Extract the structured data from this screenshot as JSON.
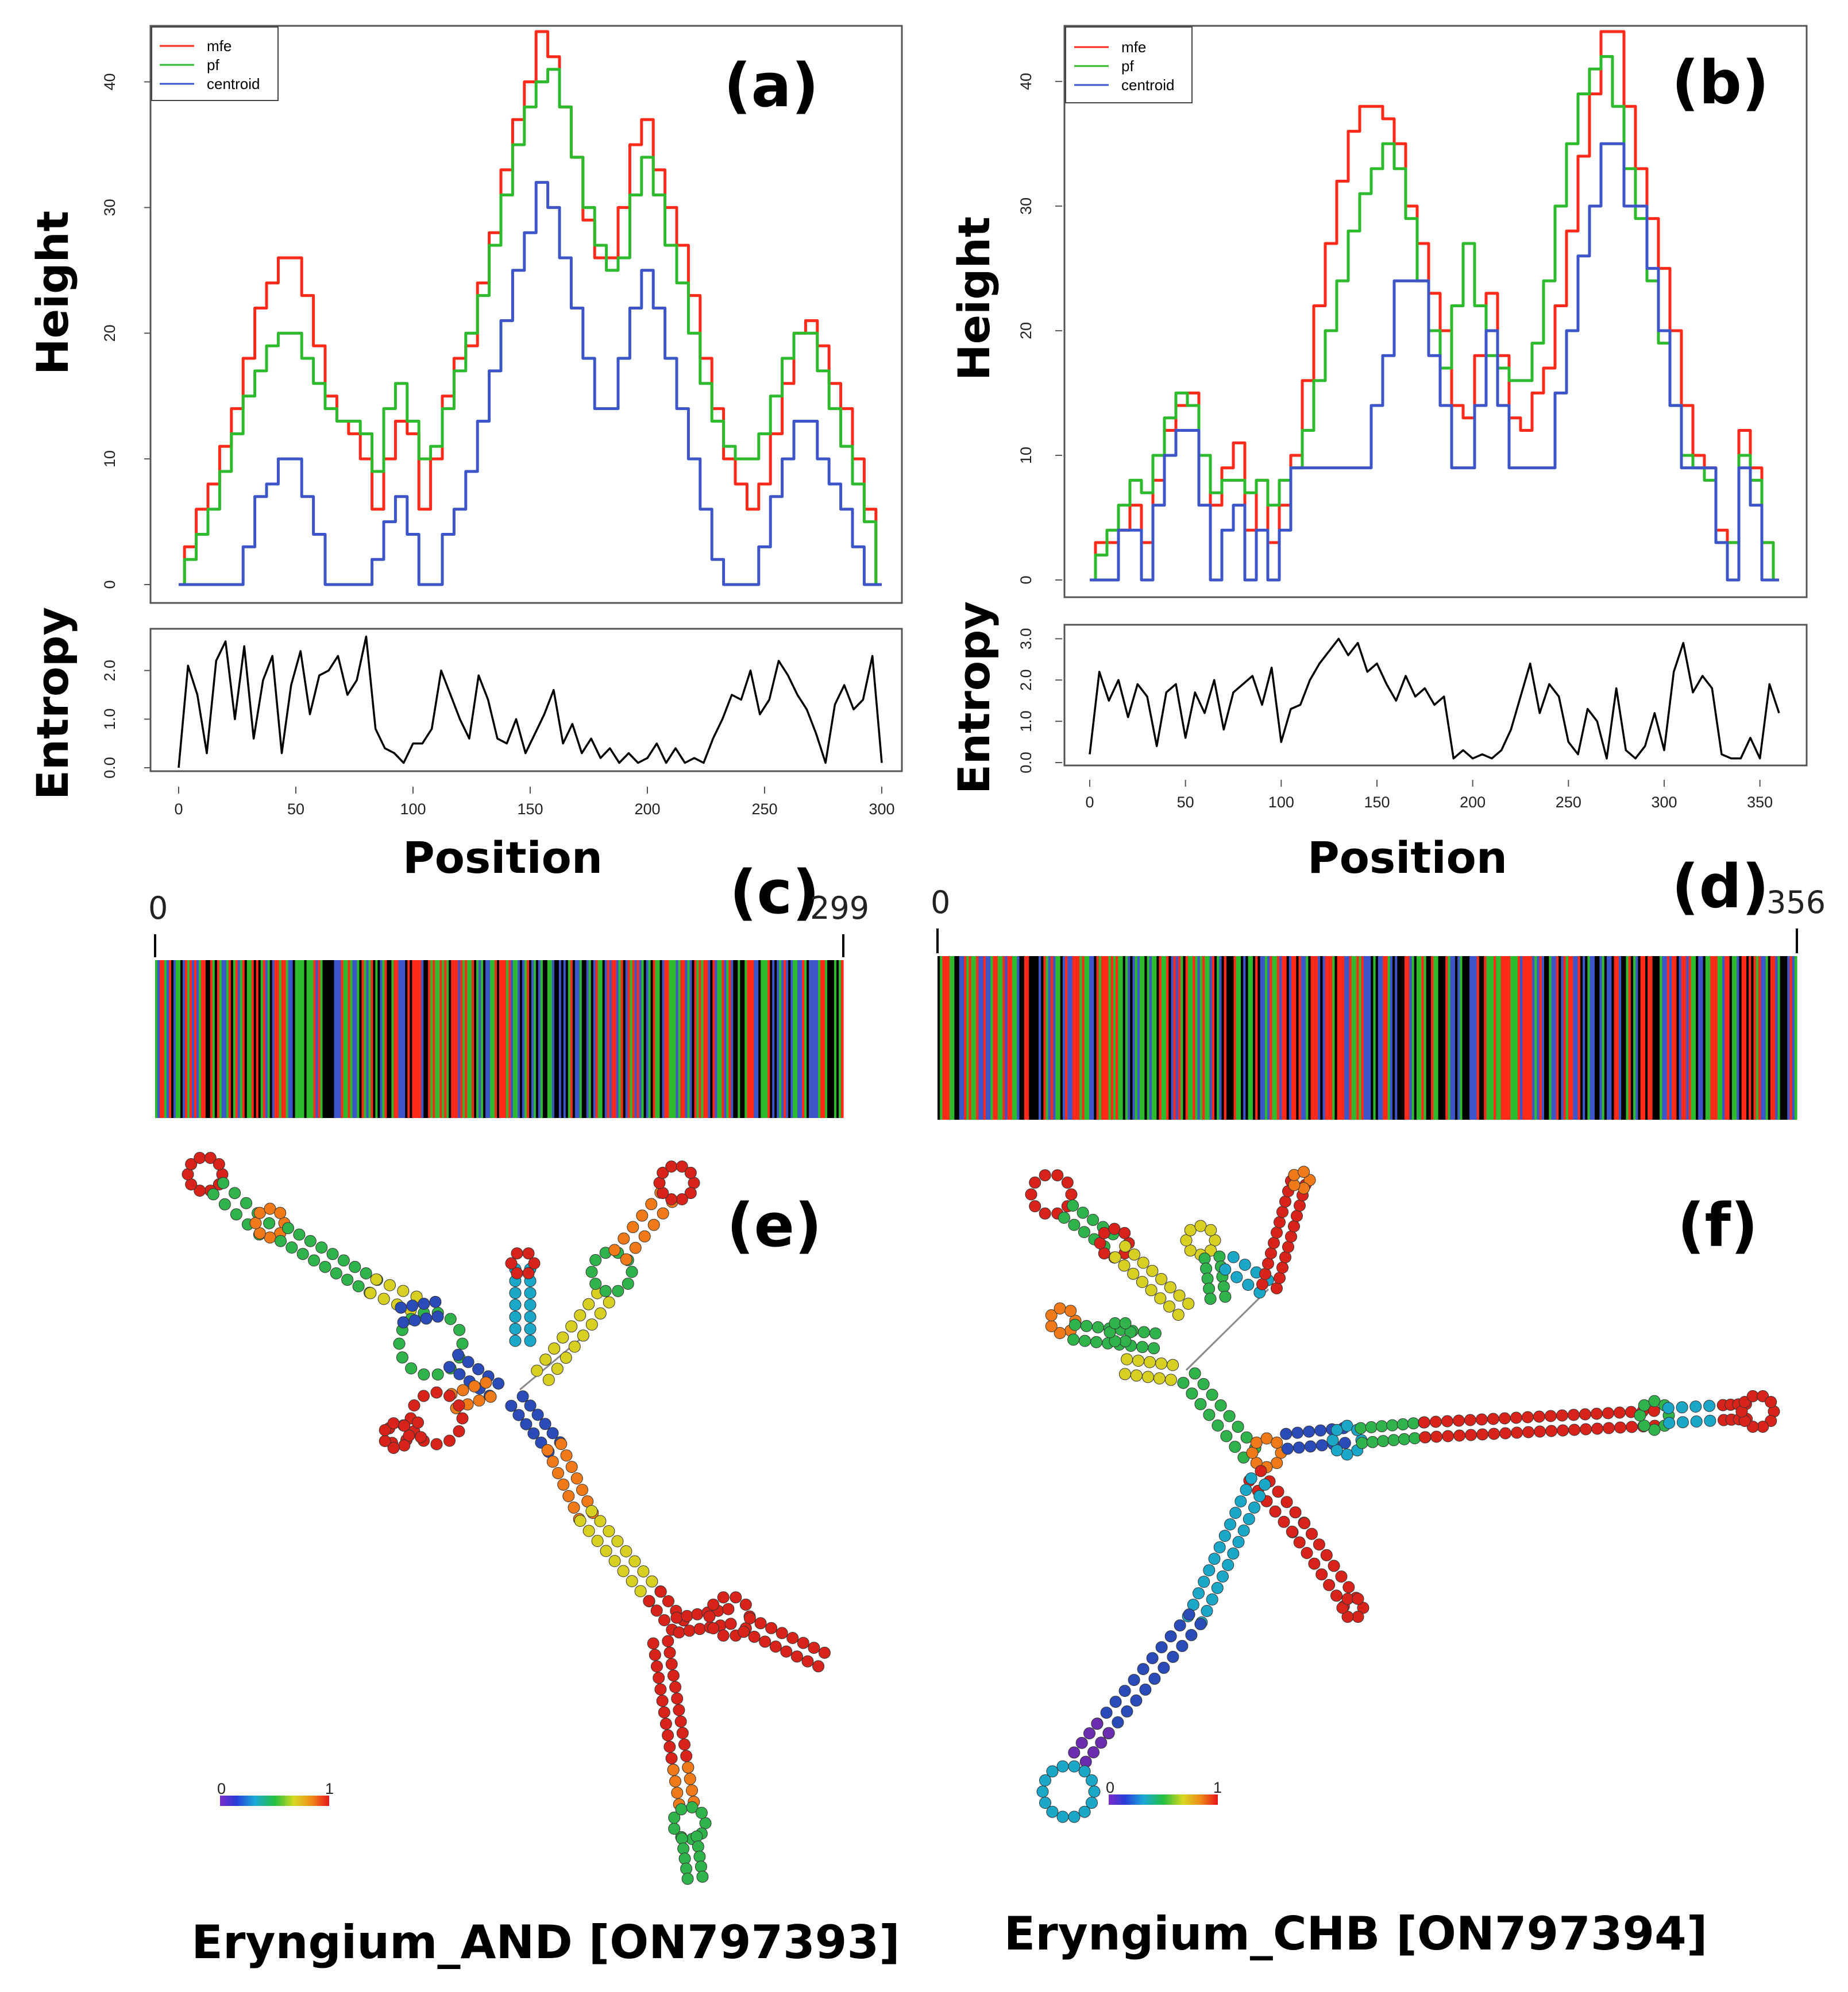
{
  "figure": {
    "captions": [
      "Eryngium_AND [ON797393]",
      "Eryngium_CHB [ON797394]"
    ]
  },
  "colors": {
    "mfe": "#ff2a1a",
    "pf": "#2dbb2d",
    "centroid": "#3c55c8",
    "entropy": "#000000",
    "bases": [
      "#ff2a1a",
      "#2dbb2d",
      "#3c55c8",
      "#000000"
    ]
  },
  "chart_data": [
    {
      "id": "a",
      "type": "line",
      "panel_label": "(a)",
      "ylabel": "Height",
      "ylim": [
        0,
        44
      ],
      "yticks": [
        "0",
        "10",
        "20",
        "30",
        "40"
      ],
      "xlim": [
        0,
        300
      ],
      "legend": [
        "mfe",
        "pf",
        "centroid"
      ],
      "legend_position": "top-left",
      "series": [
        {
          "name": "mfe",
          "x": [
            0,
            5,
            10,
            15,
            20,
            25,
            30,
            35,
            40,
            45,
            50,
            55,
            60,
            65,
            70,
            75,
            80,
            85,
            90,
            95,
            100,
            105,
            110,
            115,
            120,
            125,
            130,
            135,
            140,
            145,
            150,
            155,
            160,
            165,
            170,
            175,
            180,
            185,
            190,
            195,
            200,
            205,
            210,
            215,
            220,
            225,
            230,
            235,
            240,
            245,
            250,
            255,
            260,
            265,
            270,
            275,
            280,
            285,
            290,
            295,
            300
          ],
          "values": [
            0,
            3,
            6,
            8,
            11,
            14,
            18,
            22,
            24,
            26,
            26,
            23,
            19,
            15,
            13,
            12,
            10,
            6,
            10,
            13,
            12,
            6,
            10,
            15,
            18,
            19,
            24,
            28,
            33,
            37,
            40,
            44,
            42,
            38,
            34,
            29,
            26,
            26,
            30,
            35,
            37,
            33,
            30,
            27,
            23,
            18,
            14,
            10,
            8,
            6,
            8,
            12,
            16,
            20,
            21,
            19,
            16,
            14,
            10,
            6,
            0
          ]
        },
        {
          "name": "pf",
          "x": [
            0,
            5,
            10,
            15,
            20,
            25,
            30,
            35,
            40,
            45,
            50,
            55,
            60,
            65,
            70,
            75,
            80,
            85,
            90,
            95,
            100,
            105,
            110,
            115,
            120,
            125,
            130,
            135,
            140,
            145,
            150,
            155,
            160,
            165,
            170,
            175,
            180,
            185,
            190,
            195,
            200,
            205,
            210,
            215,
            220,
            225,
            230,
            235,
            240,
            245,
            250,
            255,
            260,
            265,
            270,
            275,
            280,
            285,
            290,
            295,
            300
          ],
          "values": [
            0,
            2,
            4,
            6,
            9,
            12,
            15,
            17,
            19,
            20,
            20,
            18,
            16,
            14,
            13,
            13,
            12,
            9,
            14,
            16,
            13,
            10,
            11,
            14,
            17,
            20,
            23,
            27,
            31,
            35,
            38,
            40,
            41,
            38,
            34,
            30,
            27,
            25,
            26,
            31,
            34,
            31,
            27,
            24,
            20,
            16,
            13,
            11,
            10,
            10,
            12,
            15,
            18,
            20,
            20,
            17,
            14,
            11,
            8,
            5,
            0
          ]
        },
        {
          "name": "centroid",
          "x": [
            0,
            5,
            10,
            15,
            20,
            25,
            30,
            35,
            40,
            45,
            50,
            55,
            60,
            65,
            70,
            75,
            80,
            85,
            90,
            95,
            100,
            105,
            110,
            115,
            120,
            125,
            130,
            135,
            140,
            145,
            150,
            155,
            160,
            165,
            170,
            175,
            180,
            185,
            190,
            195,
            200,
            205,
            210,
            215,
            220,
            225,
            230,
            235,
            240,
            245,
            250,
            255,
            260,
            265,
            270,
            275,
            280,
            285,
            290,
            295,
            300
          ],
          "values": [
            0,
            0,
            0,
            0,
            0,
            0,
            3,
            7,
            8,
            10,
            10,
            7,
            4,
            0,
            0,
            0,
            0,
            2,
            5,
            7,
            4,
            0,
            0,
            4,
            6,
            9,
            13,
            17,
            21,
            25,
            28,
            32,
            30,
            26,
            22,
            18,
            14,
            14,
            18,
            22,
            25,
            22,
            18,
            14,
            10,
            6,
            2,
            0,
            0,
            0,
            3,
            7,
            10,
            13,
            13,
            10,
            8,
            6,
            3,
            0,
            0
          ]
        }
      ],
      "entropy": {
        "ylabel": "Entropy",
        "ylim": [
          0,
          2.8
        ],
        "yticks": [
          "0.0",
          "1.0",
          "2.0"
        ],
        "x": [
          0,
          4,
          8,
          12,
          16,
          20,
          24,
          28,
          32,
          36,
          40,
          44,
          48,
          52,
          56,
          60,
          64,
          68,
          72,
          76,
          80,
          84,
          88,
          92,
          96,
          100,
          104,
          108,
          112,
          116,
          120,
          124,
          128,
          132,
          136,
          140,
          144,
          148,
          152,
          156,
          160,
          164,
          168,
          172,
          176,
          180,
          184,
          188,
          192,
          196,
          200,
          204,
          208,
          212,
          216,
          220,
          224,
          228,
          232,
          236,
          240,
          244,
          248,
          252,
          256,
          260,
          264,
          268,
          272,
          276,
          280,
          284,
          288,
          292,
          296,
          300
        ],
        "values": [
          0,
          2.1,
          1.5,
          0.3,
          2.2,
          2.6,
          1.0,
          2.5,
          0.6,
          1.8,
          2.3,
          0.3,
          1.7,
          2.4,
          1.1,
          1.9,
          2.0,
          2.3,
          1.5,
          1.8,
          2.7,
          0.8,
          0.4,
          0.3,
          0.1,
          0.5,
          0.5,
          0.8,
          2.0,
          1.5,
          1.0,
          0.6,
          1.9,
          1.4,
          0.6,
          0.5,
          1.0,
          0.3,
          0.7,
          1.1,
          1.6,
          0.5,
          0.9,
          0.3,
          0.6,
          0.2,
          0.4,
          0.1,
          0.3,
          0.1,
          0.2,
          0.5,
          0.1,
          0.4,
          0.1,
          0.2,
          0.1,
          0.6,
          1.0,
          1.5,
          1.4,
          2.0,
          1.1,
          1.4,
          2.2,
          1.9,
          1.5,
          1.2,
          0.7,
          0.1,
          1.3,
          1.7,
          1.2,
          1.4,
          2.3,
          0.1
        ]
      },
      "xlabel": "Position",
      "xticks": [
        "0",
        "50",
        "100",
        "150",
        "200",
        "250",
        "300"
      ]
    },
    {
      "id": "b",
      "type": "line",
      "panel_label": "(b)",
      "ylabel": "Height",
      "ylim": [
        0,
        44
      ],
      "yticks": [
        "0",
        "10",
        "20",
        "30",
        "40"
      ],
      "xlim": [
        0,
        360
      ],
      "legend": [
        "mfe",
        "pf",
        "centroid"
      ],
      "legend_position": "top-left",
      "series": [
        {
          "name": "mfe",
          "x": [
            0,
            6,
            12,
            18,
            24,
            30,
            36,
            42,
            48,
            54,
            60,
            66,
            72,
            78,
            84,
            90,
            96,
            102,
            108,
            114,
            120,
            126,
            132,
            138,
            144,
            150,
            156,
            162,
            168,
            174,
            180,
            186,
            192,
            198,
            204,
            210,
            216,
            222,
            228,
            234,
            240,
            246,
            252,
            258,
            264,
            270,
            276,
            282,
            288,
            294,
            300,
            306,
            312,
            318,
            324,
            330,
            336,
            342,
            348,
            354,
            360
          ],
          "values": [
            0,
            3,
            3,
            4,
            6,
            3,
            8,
            12,
            14,
            15,
            10,
            6,
            9,
            11,
            4,
            8,
            3,
            6,
            10,
            16,
            22,
            27,
            32,
            36,
            38,
            38,
            37,
            35,
            30,
            27,
            23,
            20,
            14,
            13,
            18,
            23,
            18,
            13,
            12,
            15,
            17,
            22,
            28,
            34,
            39,
            44,
            44,
            38,
            33,
            29,
            25,
            20,
            14,
            10,
            9,
            4,
            3,
            12,
            9,
            3,
            0
          ]
        },
        {
          "name": "pf",
          "x": [
            0,
            6,
            12,
            18,
            24,
            30,
            36,
            42,
            48,
            54,
            60,
            66,
            72,
            78,
            84,
            90,
            96,
            102,
            108,
            114,
            120,
            126,
            132,
            138,
            144,
            150,
            156,
            162,
            168,
            174,
            180,
            186,
            192,
            198,
            204,
            210,
            216,
            222,
            228,
            234,
            240,
            246,
            252,
            258,
            264,
            270,
            276,
            282,
            288,
            294,
            300,
            306,
            312,
            318,
            324,
            330,
            336,
            342,
            348,
            354,
            360
          ],
          "values": [
            0,
            2,
            4,
            6,
            8,
            7,
            10,
            13,
            15,
            14,
            10,
            7,
            8,
            8,
            7,
            8,
            6,
            8,
            9,
            12,
            16,
            20,
            24,
            28,
            31,
            33,
            35,
            33,
            29,
            24,
            20,
            17,
            22,
            27,
            22,
            18,
            17,
            16,
            16,
            19,
            24,
            30,
            35,
            39,
            41,
            42,
            38,
            33,
            29,
            24,
            19,
            14,
            10,
            9,
            8,
            3,
            3,
            10,
            8,
            3,
            0
          ]
        },
        {
          "name": "centroid",
          "x": [
            0,
            6,
            12,
            18,
            24,
            30,
            36,
            42,
            48,
            54,
            60,
            66,
            72,
            78,
            84,
            90,
            96,
            102,
            108,
            114,
            120,
            126,
            132,
            138,
            144,
            150,
            156,
            162,
            168,
            174,
            180,
            186,
            192,
            198,
            204,
            210,
            216,
            222,
            228,
            234,
            240,
            246,
            252,
            258,
            264,
            270,
            276,
            282,
            288,
            294,
            300,
            306,
            312,
            318,
            324,
            330,
            336,
            342,
            348,
            354,
            360
          ],
          "values": [
            0,
            0,
            0,
            4,
            4,
            0,
            6,
            10,
            12,
            12,
            6,
            0,
            4,
            6,
            0,
            4,
            0,
            4,
            9,
            9,
            9,
            9,
            9,
            9,
            9,
            14,
            18,
            24,
            24,
            24,
            18,
            14,
            9,
            9,
            14,
            20,
            14,
            9,
            9,
            9,
            9,
            15,
            20,
            26,
            30,
            35,
            35,
            30,
            30,
            25,
            20,
            14,
            9,
            9,
            9,
            3,
            0,
            9,
            6,
            0,
            0
          ]
        }
      ],
      "entropy": {
        "ylabel": "Entropy",
        "ylim": [
          0,
          3.2
        ],
        "yticks": [
          "0.0",
          "1.0",
          "2.0",
          "3.0"
        ],
        "x": [
          0,
          5,
          10,
          15,
          20,
          25,
          30,
          35,
          40,
          45,
          50,
          55,
          60,
          65,
          70,
          75,
          80,
          85,
          90,
          95,
          100,
          105,
          110,
          115,
          120,
          125,
          130,
          135,
          140,
          145,
          150,
          155,
          160,
          165,
          170,
          175,
          180,
          185,
          190,
          195,
          200,
          205,
          210,
          215,
          220,
          225,
          230,
          235,
          240,
          245,
          250,
          255,
          260,
          265,
          270,
          275,
          280,
          285,
          290,
          295,
          300,
          305,
          310,
          315,
          320,
          325,
          330,
          335,
          340,
          345,
          350,
          355,
          360
        ],
        "values": [
          0.2,
          2.2,
          1.5,
          2.0,
          1.1,
          1.9,
          1.6,
          0.4,
          1.7,
          1.9,
          0.6,
          1.7,
          1.2,
          2.0,
          0.8,
          1.7,
          1.9,
          2.1,
          1.4,
          2.3,
          0.5,
          1.3,
          1.4,
          2.0,
          2.4,
          2.7,
          3.0,
          2.6,
          2.9,
          2.2,
          2.4,
          1.9,
          1.5,
          2.1,
          1.6,
          1.8,
          1.4,
          1.6,
          0.1,
          0.3,
          0.1,
          0.2,
          0.1,
          0.3,
          0.8,
          1.6,
          2.4,
          1.2,
          1.9,
          1.6,
          0.5,
          0.2,
          1.3,
          1.0,
          0.1,
          1.8,
          0.3,
          0.1,
          0.4,
          1.2,
          0.3,
          2.2,
          2.9,
          1.7,
          2.1,
          1.8,
          0.2,
          0.1,
          0.1,
          0.6,
          0.1,
          1.9,
          1.2
        ]
      },
      "xlabel": "Position",
      "xticks": [
        "0",
        "50",
        "100",
        "150",
        "200",
        "250",
        "300",
        "350"
      ]
    }
  ],
  "barcodes": [
    {
      "panel_label": "(c)",
      "start_label": "0",
      "end_label": "299",
      "length": 300
    },
    {
      "panel_label": "(d)",
      "start_label": "0",
      "end_label": "356",
      "length": 357
    }
  ],
  "structures": [
    {
      "panel_label": "(e)",
      "scale_min": "0",
      "scale_max": "1"
    },
    {
      "panel_label": "(f)",
      "scale_min": "0",
      "scale_max": "1"
    }
  ]
}
